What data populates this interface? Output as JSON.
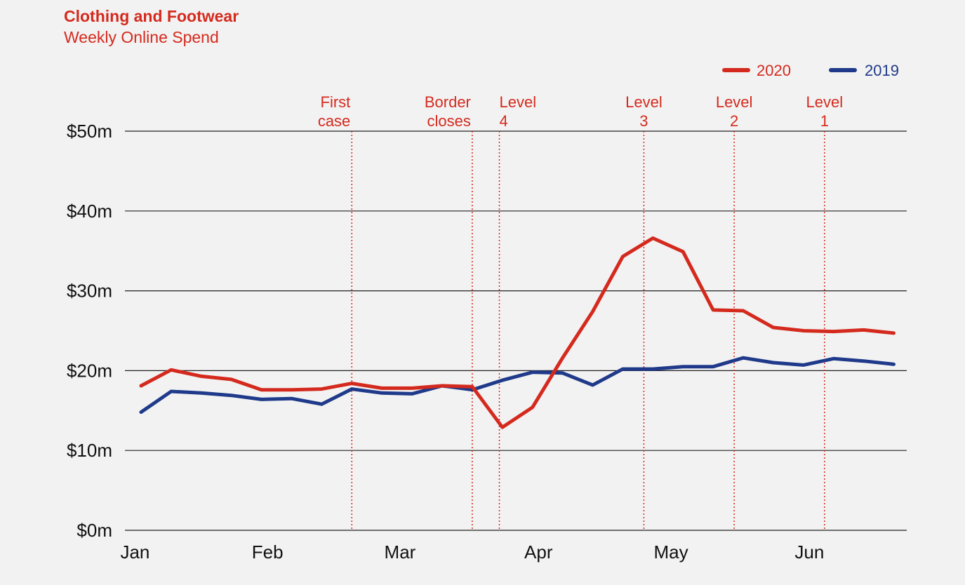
{
  "chart_data": {
    "type": "line",
    "title": "Clothing and Footwear",
    "subtitle": "Weekly Online Spend",
    "ylim": [
      0,
      50
    ],
    "yticks": [
      "$0m",
      "$10m",
      "$20m",
      "$30m",
      "$40m",
      "$50m"
    ],
    "ytick_values": [
      0,
      10,
      20,
      30,
      40,
      50
    ],
    "xtick_labels": [
      "Jan",
      "Feb",
      "Mar",
      "Apr",
      "May",
      "Jun"
    ],
    "grid": "horizontal",
    "legend_position": "top-right",
    "series": [
      {
        "name": "2020",
        "color": "#d42a1e",
        "values": [
          18.1,
          20.1,
          19.3,
          18.9,
          17.6,
          17.6,
          17.7,
          18.4,
          17.8,
          17.8,
          18.1,
          18.0,
          12.9,
          15.4,
          21.6,
          27.4,
          34.3,
          36.6,
          34.9,
          27.6,
          27.5,
          25.4,
          25.0,
          24.9,
          25.1,
          24.7
        ]
      },
      {
        "name": "2019",
        "color": "#1f3a8a",
        "values": [
          14.8,
          17.4,
          17.2,
          16.9,
          16.4,
          16.5,
          15.8,
          17.7,
          17.2,
          17.1,
          18.1,
          17.6,
          18.8,
          19.8,
          19.7,
          18.2,
          20.2,
          20.2,
          20.5,
          20.5,
          21.6,
          21.0,
          20.7,
          21.5,
          21.2,
          20.8
        ]
      }
    ],
    "events": [
      {
        "label_line1": "First",
        "label_line2": "case",
        "week": 7
      },
      {
        "label_line1": "Border",
        "label_line2": "closes",
        "week": 11
      },
      {
        "label_line1": "Level",
        "label_line2": "4",
        "week": 11.9
      },
      {
        "label_line1": "Level",
        "label_line2": "3",
        "week": 16.7
      },
      {
        "label_line1": "Level",
        "label_line2": "2",
        "week": 19.7
      },
      {
        "label_line1": "Level",
        "label_line2": "1",
        "week": 22.7
      }
    ],
    "month_ticks": [
      {
        "label": "Jan",
        "week": -0.2
      },
      {
        "label": "Feb",
        "week": 4.2
      },
      {
        "label": "Mar",
        "week": 8.6
      },
      {
        "label": "Apr",
        "week": 13.2
      },
      {
        "label": "May",
        "week": 17.6
      },
      {
        "label": "Jun",
        "week": 22.2
      }
    ]
  }
}
